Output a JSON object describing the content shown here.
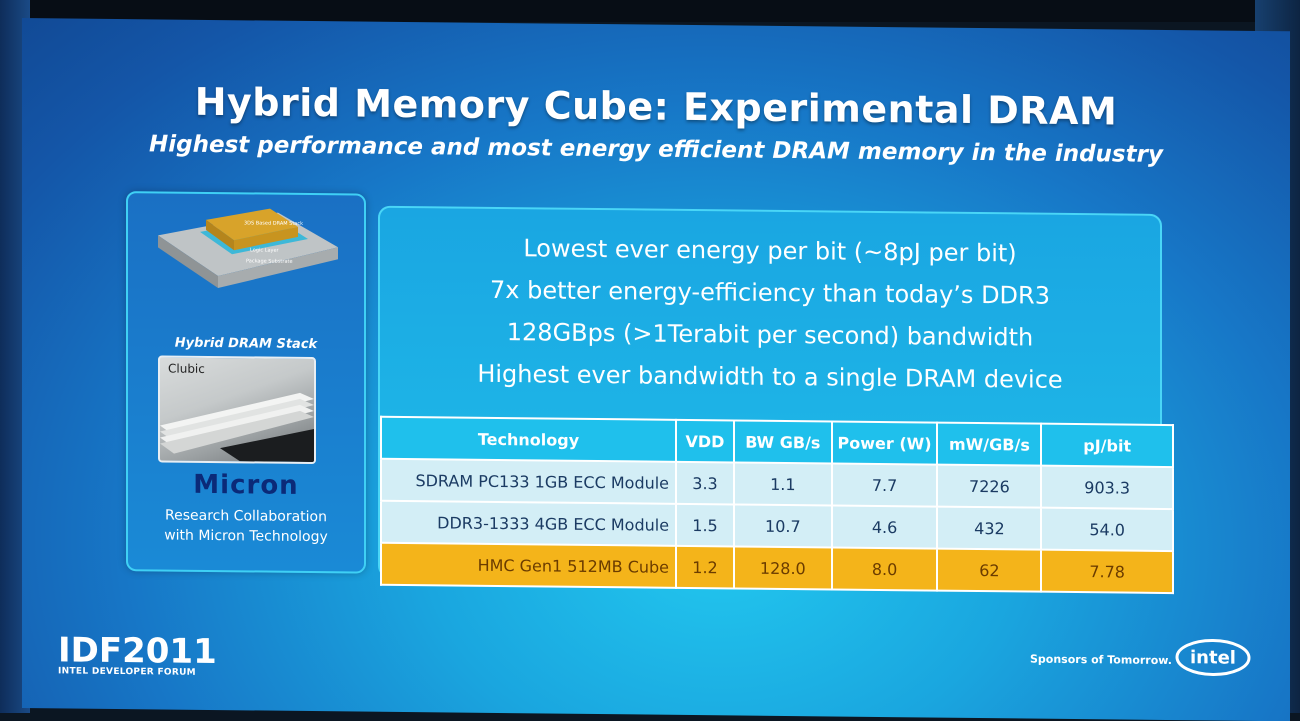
{
  "slide": {
    "title": "Hybrid Memory Cube: Experimental DRAM",
    "subtitle": "Highest performance and most energy efficient DRAM memory in the industry"
  },
  "left_card": {
    "chip_labels": [
      "3DS Based DRAM Stack",
      "Logic Layer",
      "Package Substrate"
    ],
    "stack_caption": "Hybrid DRAM Stack",
    "photo_label": "Clubic",
    "brand": "Micron",
    "collaboration": [
      "Research Collaboration",
      "with Micron Technology"
    ]
  },
  "bullets": [
    "Lowest ever energy per bit (~8pJ per bit)",
    "7x better energy-efficiency than today’s DDR3",
    "128GBps (>1Terabit per second) bandwidth",
    "Highest ever bandwidth to a single DRAM device"
  ],
  "table": {
    "headers": [
      "Technology",
      "VDD",
      "BW GB/s",
      "Power (W)",
      "mW/GB/s",
      "pJ/bit"
    ],
    "rows": [
      [
        "SDRAM PC133 1GB ECC Module",
        "3.3",
        "1.1",
        "7.7",
        "7226",
        "903.3"
      ],
      [
        "DDR3-1333 4GB ECC Module",
        "1.5",
        "10.7",
        "4.6",
        "432",
        "54.0"
      ],
      [
        "HMC Gen1 512MB Cube",
        "1.2",
        "128.0",
        "8.0",
        "62",
        "7.78"
      ]
    ],
    "highlight_row": 2,
    "highlight_color": "#f4b41a"
  },
  "footer": {
    "event": "IDF2011",
    "event_sub": "INTEL DEVELOPER FORUM",
    "sponsor": "Sponsors of Tomorrow.",
    "logo": "intel"
  },
  "colors": {
    "slide_blue": "#1777c7",
    "accent_cyan": "#1fc0ec",
    "micron_blue": "#0b2a78"
  }
}
